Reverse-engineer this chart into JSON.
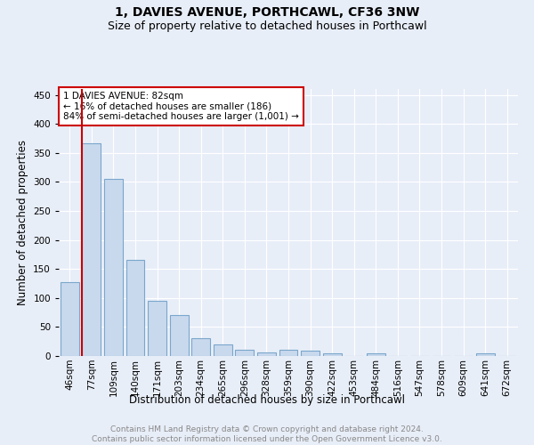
{
  "title1": "1, DAVIES AVENUE, PORTHCAWL, CF36 3NW",
  "title2": "Size of property relative to detached houses in Porthcawl",
  "xlabel": "Distribution of detached houses by size in Porthcawl",
  "ylabel": "Number of detached properties",
  "bar_labels": [
    "46sqm",
    "77sqm",
    "109sqm",
    "140sqm",
    "171sqm",
    "203sqm",
    "234sqm",
    "265sqm",
    "296sqm",
    "328sqm",
    "359sqm",
    "390sqm",
    "422sqm",
    "453sqm",
    "484sqm",
    "516sqm",
    "547sqm",
    "578sqm",
    "609sqm",
    "641sqm",
    "672sqm"
  ],
  "bar_values": [
    128,
    367,
    305,
    165,
    95,
    70,
    30,
    20,
    11,
    6,
    10,
    9,
    4,
    0,
    4,
    0,
    0,
    0,
    0,
    4,
    0
  ],
  "bar_color": "#c9d9ed",
  "bar_edge_color": "#7aa6cc",
  "bar_edge_width": 0.8,
  "property_line_x": 0.57,
  "property_line_color": "#cc0000",
  "annotation_text": "1 DAVIES AVENUE: 82sqm\n← 16% of detached houses are smaller (186)\n84% of semi-detached houses are larger (1,001) →",
  "annotation_box_color": "#ffffff",
  "annotation_box_edge_color": "#cc0000",
  "ylim": [
    0,
    460
  ],
  "yticks": [
    0,
    50,
    100,
    150,
    200,
    250,
    300,
    350,
    400,
    450
  ],
  "background_color": "#e8eef8",
  "grid_color": "#ffffff",
  "footer_text": "Contains HM Land Registry data © Crown copyright and database right 2024.\nContains public sector information licensed under the Open Government Licence v3.0.",
  "title1_fontsize": 10,
  "title2_fontsize": 9,
  "xlabel_fontsize": 8.5,
  "ylabel_fontsize": 8.5,
  "tick_fontsize": 7.5,
  "footer_fontsize": 6.5,
  "annot_fontsize": 7.5
}
